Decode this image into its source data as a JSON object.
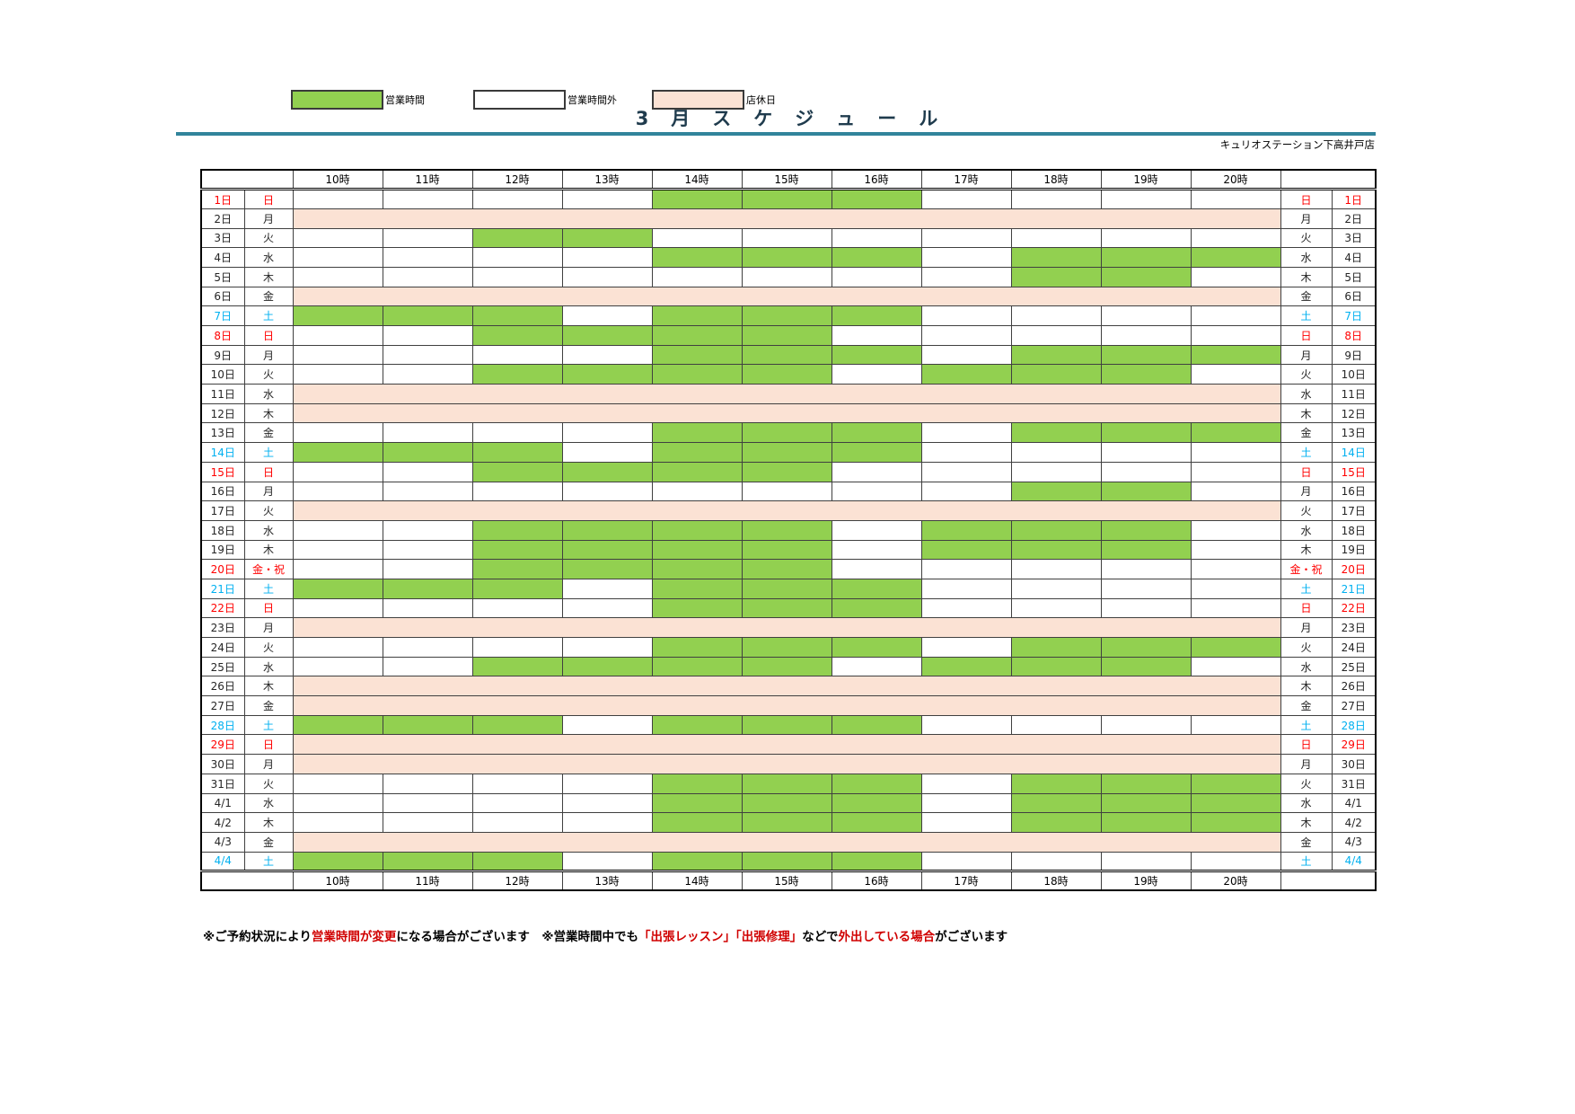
{
  "legend": [
    {
      "label": "営業時間",
      "kind": "open"
    },
    {
      "label": "営業時間外",
      "kind": "out"
    },
    {
      "label": "店休日",
      "kind": "holiday"
    }
  ],
  "title": "3　月　ス　ケ　ジ　ュ　ー　ル",
  "store_name": "キュリオステーション下高井戸店",
  "hours": [
    "10時",
    "11時",
    "12時",
    "13時",
    "14時",
    "15時",
    "16時",
    "17時",
    "18時",
    "19時",
    "20時"
  ],
  "hour_values": [
    10,
    11,
    12,
    13,
    14,
    15,
    16,
    17,
    18,
    19,
    20
  ],
  "days": [
    {
      "date": "1日",
      "weekday": "日",
      "day_color": "sun",
      "status": "open",
      "open_hours": [
        14,
        15,
        16
      ]
    },
    {
      "date": "2日",
      "weekday": "月",
      "day_color": "wd",
      "status": "holiday",
      "open_hours": []
    },
    {
      "date": "3日",
      "weekday": "火",
      "day_color": "wd",
      "status": "open",
      "open_hours": [
        12,
        13
      ]
    },
    {
      "date": "4日",
      "weekday": "水",
      "day_color": "wd",
      "status": "open",
      "open_hours": [
        14,
        15,
        16,
        18,
        19,
        20
      ]
    },
    {
      "date": "5日",
      "weekday": "木",
      "day_color": "wd",
      "status": "open",
      "open_hours": [
        18,
        19
      ]
    },
    {
      "date": "6日",
      "weekday": "金",
      "day_color": "wd",
      "status": "holiday",
      "open_hours": []
    },
    {
      "date": "7日",
      "weekday": "土",
      "day_color": "sat",
      "status": "open",
      "open_hours": [
        10,
        11,
        12,
        14,
        15,
        16
      ]
    },
    {
      "date": "8日",
      "weekday": "日",
      "day_color": "sun",
      "status": "open",
      "open_hours": [
        12,
        13,
        14,
        15
      ]
    },
    {
      "date": "9日",
      "weekday": "月",
      "day_color": "wd",
      "status": "open",
      "open_hours": [
        14,
        15,
        16,
        18,
        19,
        20
      ]
    },
    {
      "date": "10日",
      "weekday": "火",
      "day_color": "wd",
      "status": "open",
      "open_hours": [
        12,
        13,
        14,
        15,
        17,
        18,
        19
      ]
    },
    {
      "date": "11日",
      "weekday": "水",
      "day_color": "wd",
      "status": "holiday",
      "open_hours": []
    },
    {
      "date": "12日",
      "weekday": "木",
      "day_color": "wd",
      "status": "holiday",
      "open_hours": []
    },
    {
      "date": "13日",
      "weekday": "金",
      "day_color": "wd",
      "status": "open",
      "open_hours": [
        14,
        15,
        16,
        18,
        19,
        20
      ]
    },
    {
      "date": "14日",
      "weekday": "土",
      "day_color": "sat",
      "status": "open",
      "open_hours": [
        10,
        11,
        12,
        14,
        15,
        16
      ]
    },
    {
      "date": "15日",
      "weekday": "日",
      "day_color": "sun",
      "status": "open",
      "open_hours": [
        12,
        13,
        14,
        15
      ]
    },
    {
      "date": "16日",
      "weekday": "月",
      "day_color": "wd",
      "status": "open",
      "open_hours": [
        18,
        19
      ]
    },
    {
      "date": "17日",
      "weekday": "火",
      "day_color": "wd",
      "status": "holiday",
      "open_hours": []
    },
    {
      "date": "18日",
      "weekday": "水",
      "day_color": "wd",
      "status": "open",
      "open_hours": [
        12,
        13,
        14,
        15,
        17,
        18,
        19
      ]
    },
    {
      "date": "19日",
      "weekday": "木",
      "day_color": "wd",
      "status": "open",
      "open_hours": [
        12,
        13,
        14,
        15,
        17,
        18,
        19
      ]
    },
    {
      "date": "20日",
      "weekday": "金・祝",
      "day_color": "sun",
      "status": "open",
      "open_hours": [
        12,
        13,
        14,
        15
      ]
    },
    {
      "date": "21日",
      "weekday": "土",
      "day_color": "sat",
      "status": "open",
      "open_hours": [
        10,
        11,
        12,
        14,
        15,
        16
      ]
    },
    {
      "date": "22日",
      "weekday": "日",
      "day_color": "sun",
      "status": "open",
      "open_hours": [
        14,
        15,
        16
      ]
    },
    {
      "date": "23日",
      "weekday": "月",
      "day_color": "wd",
      "status": "holiday",
      "open_hours": []
    },
    {
      "date": "24日",
      "weekday": "火",
      "day_color": "wd",
      "status": "open",
      "open_hours": [
        14,
        15,
        16,
        18,
        19,
        20
      ]
    },
    {
      "date": "25日",
      "weekday": "水",
      "day_color": "wd",
      "status": "open",
      "open_hours": [
        12,
        13,
        14,
        15,
        17,
        18,
        19
      ]
    },
    {
      "date": "26日",
      "weekday": "木",
      "day_color": "wd",
      "status": "holiday",
      "open_hours": []
    },
    {
      "date": "27日",
      "weekday": "金",
      "day_color": "wd",
      "status": "holiday",
      "open_hours": []
    },
    {
      "date": "28日",
      "weekday": "土",
      "day_color": "sat",
      "status": "open",
      "open_hours": [
        10,
        11,
        12,
        14,
        15,
        16
      ]
    },
    {
      "date": "29日",
      "weekday": "日",
      "day_color": "sun",
      "status": "holiday",
      "open_hours": []
    },
    {
      "date": "30日",
      "weekday": "月",
      "day_color": "wd",
      "status": "holiday",
      "open_hours": []
    },
    {
      "date": "31日",
      "weekday": "火",
      "day_color": "wd",
      "status": "open",
      "open_hours": [
        14,
        15,
        16,
        18,
        19,
        20
      ]
    },
    {
      "date": "4/1",
      "weekday": "水",
      "day_color": "wd",
      "status": "open",
      "open_hours": [
        14,
        15,
        16,
        18,
        19,
        20
      ]
    },
    {
      "date": "4/2",
      "weekday": "木",
      "day_color": "wd",
      "status": "open",
      "open_hours": [
        14,
        15,
        16,
        18,
        19,
        20
      ]
    },
    {
      "date": "4/3",
      "weekday": "金",
      "day_color": "wd",
      "status": "holiday",
      "open_hours": []
    },
    {
      "date": "4/4",
      "weekday": "土",
      "day_color": "sat",
      "status": "open",
      "open_hours": [
        10,
        11,
        12,
        14,
        15,
        16
      ]
    }
  ],
  "notes": [
    {
      "text": "※ご予約状況により",
      "color": "black"
    },
    {
      "text": "営業時間が変更",
      "color": "red"
    },
    {
      "text": "になる場合がございます　",
      "color": "black"
    },
    {
      "text": "※営業時間中でも",
      "color": "black"
    },
    {
      "text": "「出張レッスン」「出張修理」",
      "color": "red"
    },
    {
      "text": "などで",
      "color": "black"
    },
    {
      "text": "外出している場合",
      "color": "red"
    },
    {
      "text": "がございます",
      "color": "black"
    }
  ],
  "colors": {
    "open": "#92D050",
    "outside_hours": "#FFFFFF",
    "holiday": "#FBE2D4",
    "saturday_text": "#00B0F0",
    "sunday_holiday_text": "#FF0000",
    "title_rule": "#31849B"
  }
}
